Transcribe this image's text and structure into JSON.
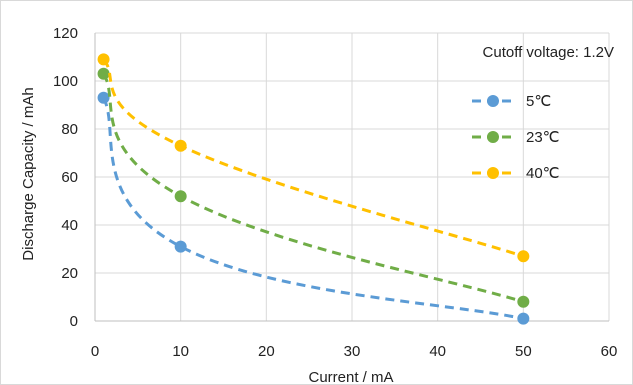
{
  "chart_data": {
    "type": "line",
    "title": "",
    "xlabel": "Current / mA",
    "ylabel": "Discharge Capacity / mAh",
    "xlim": [
      0,
      60
    ],
    "ylim": [
      0,
      120
    ],
    "xticks": [
      0,
      10,
      20,
      30,
      40,
      50,
      60
    ],
    "yticks": [
      0,
      20,
      40,
      60,
      80,
      100,
      120
    ],
    "grid": true,
    "legend_position": "right",
    "annotation": "Cutoff voltage: 1.2V",
    "x": [
      1,
      10,
      50
    ],
    "series": [
      {
        "name": "5℃",
        "color": "#5b9bd5",
        "values": [
          93,
          31,
          1
        ]
      },
      {
        "name": "23℃",
        "color": "#70ad47",
        "values": [
          103,
          52,
          8
        ]
      },
      {
        "name": "40℃",
        "color": "#ffc000",
        "values": [
          109,
          73,
          27
        ]
      }
    ]
  }
}
